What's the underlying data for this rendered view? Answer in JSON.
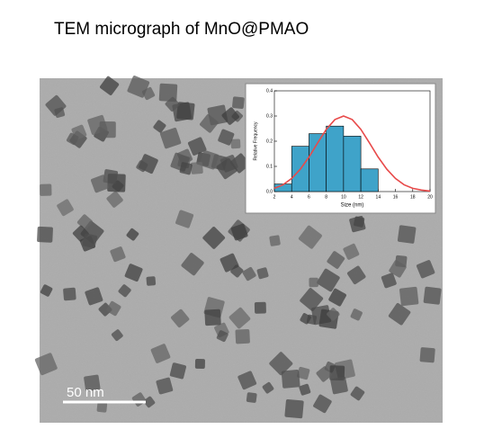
{
  "title": "TEM micrograph of MnO@PMAO",
  "scale_bar": "50 nm",
  "chart_data": {
    "type": "histogram",
    "xlabel": "Size (nm)",
    "ylabel": "Relative Frequency",
    "bins": [
      2,
      4,
      6,
      8,
      10,
      12,
      14
    ],
    "values": [
      0.03,
      0.18,
      0.23,
      0.26,
      0.22,
      0.09
    ],
    "color": "#3fa3c9",
    "fit": {
      "color": "#e84a4a",
      "x": [
        2,
        3,
        4,
        5,
        6,
        7,
        8,
        9,
        10,
        11,
        12,
        13,
        14,
        15,
        16,
        17,
        18,
        19,
        20
      ],
      "values": [
        0.013,
        0.027,
        0.052,
        0.089,
        0.137,
        0.193,
        0.247,
        0.286,
        0.3,
        0.286,
        0.247,
        0.193,
        0.137,
        0.089,
        0.052,
        0.027,
        0.013,
        0.006,
        0.002
      ]
    },
    "xlim": [
      2,
      20
    ],
    "xticks": [
      2,
      4,
      6,
      8,
      10,
      12,
      14,
      16,
      18,
      20
    ],
    "ylim": [
      0,
      0.4
    ],
    "yticks": [
      {
        "value": 0,
        "label": "0.0"
      },
      0.1,
      0.2,
      0.3,
      0.4
    ]
  }
}
